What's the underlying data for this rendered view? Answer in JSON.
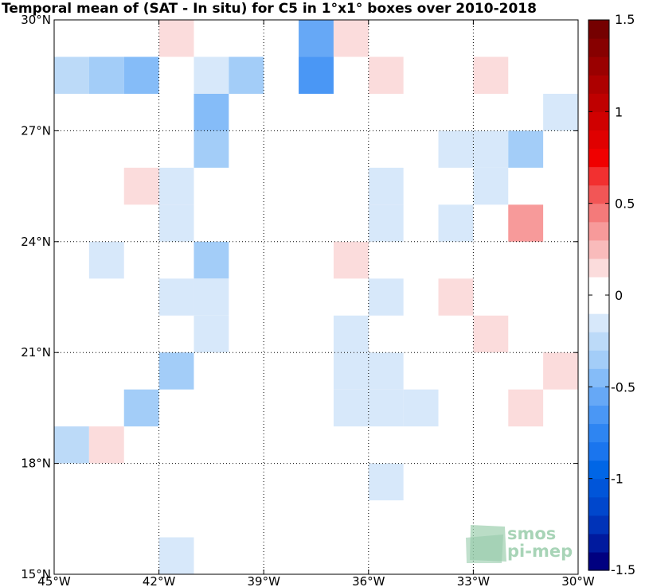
{
  "chart_data": {
    "type": "heatmap",
    "title": "Temporal mean of (SAT - In situ) for C5 in 1°x1° boxes over 2010-2018",
    "x_range": [
      -45,
      -30
    ],
    "y_range": [
      15,
      30
    ],
    "x_ticks": [
      -45,
      -42,
      -39,
      -36,
      -33,
      -30
    ],
    "x_tick_labels": [
      "45°W",
      "42°W",
      "39°W",
      "36°W",
      "33°W",
      "30°W"
    ],
    "y_ticks": [
      15,
      18,
      21,
      24,
      27,
      30
    ],
    "y_tick_labels": [
      "15°N",
      "18°N",
      "21°N",
      "24°N",
      "27°N",
      "30°N"
    ],
    "grid": true,
    "cell_size_deg": 1,
    "colorbar": {
      "range": [
        -1.5,
        1.5
      ],
      "ticks": [
        -1.5,
        -1,
        -0.5,
        0,
        0.5,
        1,
        1.5
      ],
      "tick_labels": [
        "-1.5",
        "-1",
        "-0.5",
        "0",
        "0.5",
        "1",
        "1.5"
      ],
      "levels": [
        -1.5,
        -1.4,
        -1.3,
        -1.2,
        -1.1,
        -1.0,
        -0.9,
        -0.8,
        -0.7,
        -0.6,
        -0.5,
        -0.4,
        -0.3,
        -0.2,
        -0.1,
        0.1,
        0.2,
        0.3,
        0.4,
        0.5,
        0.6,
        0.7,
        0.8,
        0.9,
        1.0,
        1.1,
        1.2,
        1.3,
        1.4,
        1.5
      ],
      "colors": [
        "#000080",
        "#001a9e",
        "#0033b8",
        "#0047cc",
        "#0055d9",
        "#0066e6",
        "#1a75ee",
        "#2e85f2",
        "#4a97f5",
        "#66a8f6",
        "#85bcf8",
        "#a3cdf8",
        "#bcdaf8",
        "#d7e8fa",
        "#ffffff",
        "#fbdcdc",
        "#f9bbbb",
        "#f79a9a",
        "#f47a7a",
        "#f25656",
        "#f23030",
        "#f00000",
        "#e00000",
        "#d00000",
        "#bf0000",
        "#ad0000",
        "#9a0000",
        "#870000",
        "#750000"
      ]
    },
    "cells": [
      {
        "lon": -41.5,
        "lat": 29.5,
        "value": 0.15
      },
      {
        "lon": -37.5,
        "lat": 29.5,
        "value": -0.5
      },
      {
        "lon": -36.5,
        "lat": 29.5,
        "value": 0.15
      },
      {
        "lon": -37.5,
        "lat": 28.5,
        "value": -0.6
      },
      {
        "lon": -44.5,
        "lat": 28.5,
        "value": -0.2
      },
      {
        "lon": -43.5,
        "lat": 28.5,
        "value": -0.3
      },
      {
        "lon": -42.5,
        "lat": 28.5,
        "value": -0.4
      },
      {
        "lon": -40.5,
        "lat": 28.5,
        "value": -0.15
      },
      {
        "lon": -39.5,
        "lat": 28.5,
        "value": -0.3
      },
      {
        "lon": -35.5,
        "lat": 28.5,
        "value": 0.15
      },
      {
        "lon": -32.5,
        "lat": 28.5,
        "value": 0.15
      },
      {
        "lon": -30.5,
        "lat": 27.5,
        "value": -0.15
      },
      {
        "lon": -40.5,
        "lat": 27.5,
        "value": -0.45
      },
      {
        "lon": -40.5,
        "lat": 26.5,
        "value": -0.3
      },
      {
        "lon": -33.5,
        "lat": 26.5,
        "value": -0.15
      },
      {
        "lon": -32.5,
        "lat": 26.5,
        "value": -0.15
      },
      {
        "lon": -31.5,
        "lat": 26.5,
        "value": -0.3
      },
      {
        "lon": -42.5,
        "lat": 25.5,
        "value": 0.2
      },
      {
        "lon": -41.5,
        "lat": 25.5,
        "value": -0.15
      },
      {
        "lon": -35.5,
        "lat": 25.5,
        "value": -0.15
      },
      {
        "lon": -32.5,
        "lat": 25.5,
        "value": -0.15
      },
      {
        "lon": -41.5,
        "lat": 24.5,
        "value": -0.15
      },
      {
        "lon": -35.5,
        "lat": 24.5,
        "value": -0.15
      },
      {
        "lon": -33.5,
        "lat": 24.5,
        "value": -0.15
      },
      {
        "lon": -31.5,
        "lat": 24.5,
        "value": 0.35
      },
      {
        "lon": -43.5,
        "lat": 23.5,
        "value": -0.15
      },
      {
        "lon": -40.5,
        "lat": 23.5,
        "value": -0.3
      },
      {
        "lon": -36.5,
        "lat": 23.5,
        "value": 0.2
      },
      {
        "lon": -41.5,
        "lat": 22.5,
        "value": -0.15
      },
      {
        "lon": -40.5,
        "lat": 22.5,
        "value": -0.15
      },
      {
        "lon": -35.5,
        "lat": 22.5,
        "value": -0.15
      },
      {
        "lon": -33.5,
        "lat": 22.5,
        "value": 0.2
      },
      {
        "lon": -40.5,
        "lat": 21.5,
        "value": -0.15
      },
      {
        "lon": -36.5,
        "lat": 21.5,
        "value": -0.15
      },
      {
        "lon": -32.5,
        "lat": 21.5,
        "value": 0.2
      },
      {
        "lon": -41.5,
        "lat": 20.5,
        "value": -0.3
      },
      {
        "lon": -36.5,
        "lat": 20.5,
        "value": -0.15
      },
      {
        "lon": -35.5,
        "lat": 20.5,
        "value": -0.15
      },
      {
        "lon": -30.5,
        "lat": 20.5,
        "value": 0.2
      },
      {
        "lon": -42.5,
        "lat": 19.5,
        "value": -0.3
      },
      {
        "lon": -36.5,
        "lat": 19.5,
        "value": -0.15
      },
      {
        "lon": -35.5,
        "lat": 19.5,
        "value": -0.15
      },
      {
        "lon": -34.5,
        "lat": 19.5,
        "value": -0.15
      },
      {
        "lon": -31.5,
        "lat": 19.5,
        "value": 0.15
      },
      {
        "lon": -44.5,
        "lat": 18.5,
        "value": -0.2
      },
      {
        "lon": -43.5,
        "lat": 18.5,
        "value": 0.2
      },
      {
        "lon": -35.5,
        "lat": 17.5,
        "value": -0.15
      },
      {
        "lon": -41.5,
        "lat": 15.5,
        "value": -0.15
      }
    ]
  },
  "logo": {
    "line1": "smos",
    "line2": "pi-mep",
    "color": "#9fd0b0"
  }
}
